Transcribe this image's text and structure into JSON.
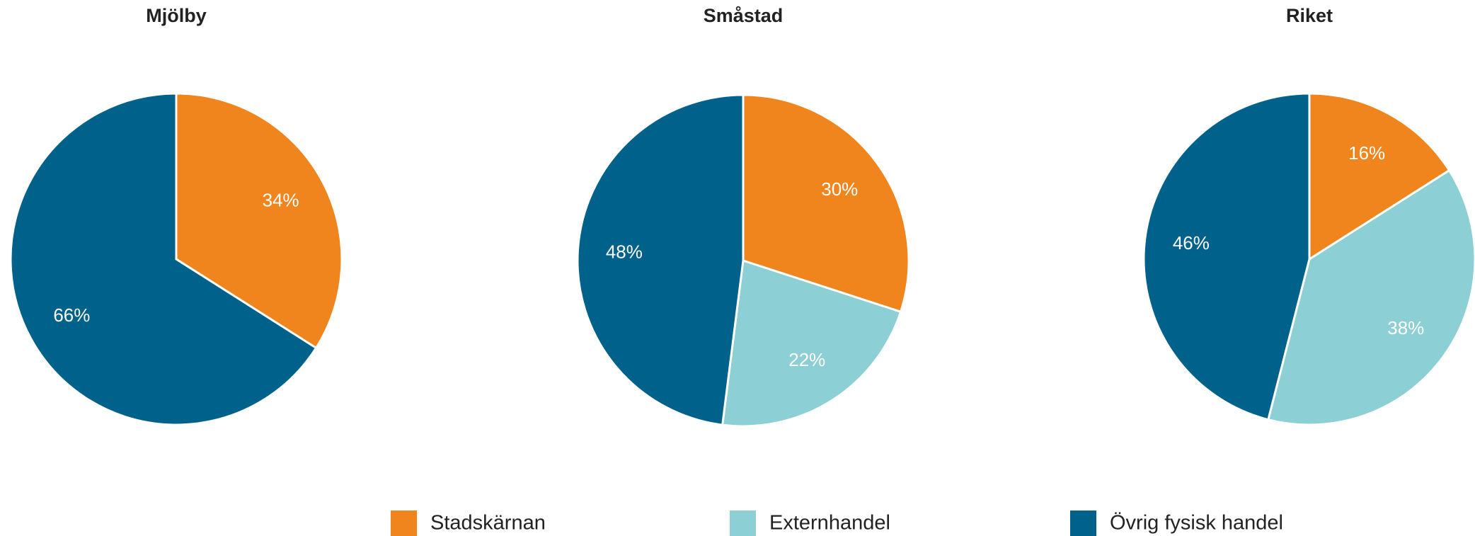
{
  "chart_data": [
    {
      "type": "pie",
      "title": "Mjölby",
      "values": [
        34,
        null,
        66
      ],
      "value_labels": [
        "34%",
        null,
        "66%"
      ]
    },
    {
      "type": "pie",
      "title": "Småstad",
      "values": [
        30,
        22,
        48
      ],
      "value_labels": [
        "30%",
        "22%",
        "48%"
      ]
    },
    {
      "type": "pie",
      "title": "Riket",
      "values": [
        16,
        38,
        46
      ],
      "value_labels": [
        "16%",
        "38%",
        "46%"
      ]
    }
  ],
  "legend": {
    "labels": [
      "Stadskärnan",
      "Externhandel",
      "Övrig fysisk handel"
    ],
    "colors": [
      "#f0851e",
      "#8ccfd4",
      "#00628b"
    ]
  }
}
